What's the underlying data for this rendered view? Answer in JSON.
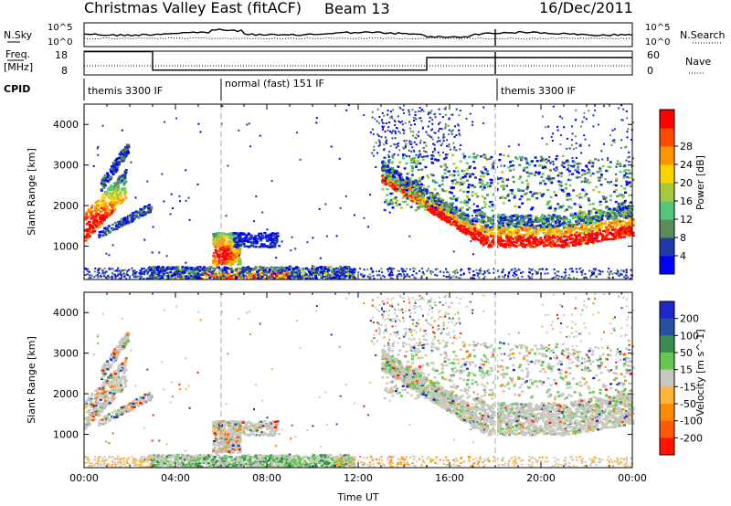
{
  "header": {
    "title": "Christmas Valley East (fitACF)",
    "beam": "Beam 13",
    "date": "16/Dec/2011"
  },
  "sky_panel": {
    "left_label": "N.Sky",
    "right_label": "N.Search",
    "y_ticks": [
      "10^5",
      "10^0"
    ]
  },
  "freq_panel": {
    "left_label_top": "Freq.",
    "left_label_bottom": "[MHz]",
    "right_label": "Nave",
    "left_ticks": [
      "18",
      "8"
    ],
    "right_ticks": [
      "60",
      "0"
    ]
  },
  "cpid_panel": {
    "label": "CPID",
    "segments": [
      {
        "text": "themis 3300 IF",
        "start_hour": 0
      },
      {
        "text": "normal (fast) 151 IF",
        "start_hour": 6.5
      },
      {
        "text": "themis 3300 IF",
        "start_hour": 18
      }
    ]
  },
  "chart_data": [
    {
      "type": "heatmap",
      "name": "power",
      "ylabel": "Slant Range [km]",
      "ylim": [
        180,
        4500
      ],
      "yticks": [
        1000,
        2000,
        3000,
        4000
      ],
      "xlim": [
        0,
        24
      ],
      "xtick_labels": [
        "00:00",
        "04:00",
        "08:00",
        "12:00",
        "16:00",
        "20:00",
        "00:00"
      ],
      "colorbar": {
        "label": "Power [dB]",
        "ticks": [
          "4",
          "8",
          "12",
          "16",
          "20",
          "24",
          "28"
        ],
        "colors": [
          "#0000ff",
          "#1e3ca8",
          "#5a8c5a",
          "#50c878",
          "#a8c83c",
          "#ffd200",
          "#ff9600",
          "#ff4b00",
          "#ff0000"
        ]
      }
    },
    {
      "type": "heatmap",
      "name": "velocity",
      "ylabel": "Slant Range [km]",
      "ylim": [
        180,
        4500
      ],
      "yticks": [
        1000,
        2000,
        3000,
        4000
      ],
      "xlim": [
        0,
        24
      ],
      "xtick_labels": [
        "00:00",
        "04:00",
        "08:00",
        "12:00",
        "16:00",
        "20:00",
        "00:00"
      ],
      "xlabel": "Time UT",
      "colorbar": {
        "label": "Velocity [m s^-1]",
        "ticks": [
          "200",
          "100",
          "50",
          "15",
          "-15",
          "-50",
          "-100",
          "-200"
        ],
        "colors": [
          "#1e28c8",
          "#2850a0",
          "#3c8c50",
          "#64c850",
          "#c8c8c0",
          "#ffb43c",
          "#ff8c00",
          "#ff5a00",
          "#ff1400"
        ]
      }
    }
  ]
}
